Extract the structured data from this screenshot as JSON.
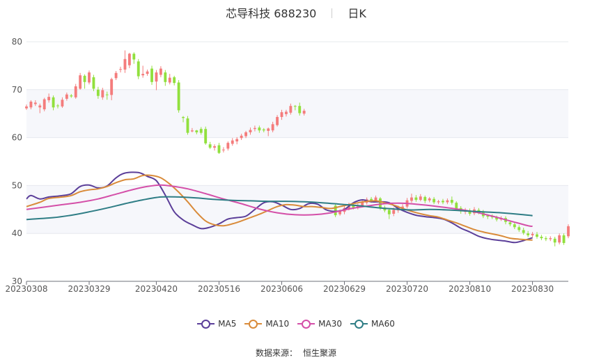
{
  "header": {
    "title": "芯导科技 688230",
    "period": "日K"
  },
  "source": {
    "label": "数据来源：",
    "value": "恒生聚源"
  },
  "colors": {
    "up": "#f47c7c",
    "down": "#91e03d",
    "MA5": "#5b3e99",
    "MA10": "#d98b3a",
    "MA30": "#d44fa8",
    "MA60": "#2e7d85"
  },
  "chart_data": {
    "type": "candlestick",
    "ylim": [
      30,
      80
    ],
    "yticks": [
      30,
      40,
      50,
      60,
      70,
      80
    ],
    "x_tick_labels": [
      "20230308",
      "20230329",
      "20230420",
      "20230516",
      "20230606",
      "20230629",
      "20230720",
      "20230810",
      "20230830"
    ],
    "x_tick_index": [
      0,
      14,
      29,
      43,
      57,
      71,
      85,
      99,
      113
    ],
    "legend": [
      "MA5",
      "MA10",
      "MA30",
      "MA60"
    ],
    "legend_position": "bottom-center",
    "candles": [
      [
        66.1,
        66.5,
        65.8,
        66.9
      ],
      [
        66.3,
        67.5,
        65.9,
        67.8
      ],
      [
        67.0,
        67.3,
        66.6,
        67.8
      ],
      [
        66.3,
        66.7,
        65.1,
        67.1
      ],
      [
        65.9,
        68.0,
        65.5,
        68.3
      ],
      [
        67.8,
        68.5,
        67.3,
        69.2
      ],
      [
        68.4,
        66.3,
        65.7,
        68.8
      ],
      [
        66.7,
        66.6,
        66.1,
        67.0
      ],
      [
        66.5,
        67.9,
        66.2,
        68.4
      ],
      [
        68.1,
        69.0,
        67.7,
        69.4
      ],
      [
        68.8,
        68.6,
        68.3,
        69.1
      ],
      [
        68.4,
        70.7,
        68.1,
        71.2
      ],
      [
        70.2,
        73.0,
        70.0,
        73.5
      ],
      [
        72.9,
        71.6,
        70.2,
        73.2
      ],
      [
        71.5,
        73.6,
        71.1,
        74.0
      ],
      [
        72.6,
        70.2,
        69.7,
        73.1
      ],
      [
        70.0,
        68.7,
        68.1,
        70.6
      ],
      [
        68.4,
        69.9,
        67.9,
        70.4
      ],
      [
        69.0,
        68.9,
        67.9,
        69.6
      ],
      [
        68.9,
        72.2,
        67.8,
        72.5
      ],
      [
        72.4,
        73.5,
        72.0,
        73.9
      ],
      [
        74.3,
        74.3,
        73.6,
        74.8
      ],
      [
        74.2,
        76.4,
        73.5,
        78.2
      ],
      [
        75.1,
        77.5,
        74.5,
        77.7
      ],
      [
        77.5,
        76.3,
        75.4,
        77.8
      ],
      [
        75.9,
        72.8,
        72.2,
        76.4
      ],
      [
        73.0,
        73.3,
        72.5,
        75.0
      ],
      [
        73.3,
        73.8,
        72.9,
        74.2
      ],
      [
        74.4,
        71.6,
        71.0,
        75.0
      ],
      [
        71.7,
        73.6,
        69.9,
        74.1
      ],
      [
        73.1,
        74.4,
        72.6,
        74.9
      ],
      [
        73.6,
        71.6,
        70.8,
        74.1
      ],
      [
        71.5,
        72.5,
        71.1,
        73.3
      ],
      [
        72.6,
        71.4,
        70.9,
        72.9
      ],
      [
        71.5,
        65.7,
        65.2,
        72.0
      ],
      [
        64.3,
        64.1,
        63.2,
        64.5
      ],
      [
        64.0,
        61.0,
        60.6,
        64.5
      ],
      [
        61.3,
        61.5,
        61.1,
        62.0
      ],
      [
        61.5,
        61.1,
        60.7,
        61.6
      ],
      [
        61.8,
        61.0,
        60.6,
        62.2
      ],
      [
        61.8,
        58.8,
        58.5,
        62.3
      ],
      [
        58.6,
        57.9,
        57.6,
        59.1
      ],
      [
        57.9,
        58.2,
        57.3,
        58.6
      ],
      [
        58.4,
        56.8,
        56.6,
        58.9
      ],
      [
        57.5,
        57.5,
        56.9,
        58.0
      ],
      [
        57.7,
        58.9,
        57.3,
        59.2
      ],
      [
        58.7,
        59.4,
        58.3,
        59.9
      ],
      [
        59.2,
        59.7,
        58.6,
        60.1
      ],
      [
        59.9,
        60.4,
        59.5,
        60.8
      ],
      [
        60.3,
        61.1,
        59.9,
        61.4
      ],
      [
        61.1,
        61.6,
        60.6,
        62.1
      ],
      [
        61.8,
        62.0,
        61.3,
        62.5
      ],
      [
        62.1,
        61.5,
        61.0,
        62.5
      ],
      [
        61.7,
        61.5,
        61.1,
        62.0
      ],
      [
        61.4,
        61.9,
        60.3,
        62.1
      ],
      [
        61.5,
        62.8,
        61.1,
        63.3
      ],
      [
        62.6,
        64.3,
        62.3,
        64.7
      ],
      [
        64.3,
        65.3,
        63.7,
        65.8
      ],
      [
        64.9,
        65.4,
        64.4,
        65.8
      ],
      [
        65.2,
        66.6,
        64.8,
        67.1
      ],
      [
        66.6,
        66.5,
        65.7,
        66.8
      ],
      [
        66.6,
        65.1,
        64.6,
        67.3
      ],
      [
        65.0,
        65.6,
        64.6,
        66.0
      ],
      null,
      null,
      null,
      null,
      null,
      null,
      [
        45.8,
        43.8,
        43.4,
        46.2
      ],
      [
        44.0,
        44.6,
        43.7,
        45.0
      ],
      [
        44.5,
        45.3,
        44.0,
        45.7
      ],
      [
        45.2,
        46.0,
        44.8,
        46.4
      ],
      [
        46.0,
        45.4,
        45.0,
        46.3
      ],
      [
        45.5,
        45.8,
        45.0,
        46.2
      ],
      [
        45.8,
        46.5,
        45.4,
        46.9
      ],
      [
        46.4,
        47.1,
        46.0,
        47.5
      ],
      [
        47.2,
        46.8,
        46.4,
        47.6
      ],
      [
        46.9,
        47.5,
        46.5,
        47.9
      ],
      [
        47.3,
        45.3,
        44.9,
        47.6
      ],
      [
        45.4,
        44.8,
        44.4,
        45.8
      ],
      [
        44.9,
        44.0,
        43.0,
        45.3
      ],
      [
        44.1,
        44.9,
        43.6,
        45.4
      ],
      [
        44.8,
        45.3,
        44.3,
        45.8
      ],
      [
        45.3,
        45.6,
        44.8,
        46.1
      ],
      [
        45.6,
        46.9,
        45.2,
        47.4
      ],
      [
        46.8,
        47.5,
        46.4,
        48.3
      ],
      [
        47.5,
        47.0,
        46.6,
        48.0
      ],
      [
        47.0,
        47.7,
        46.7,
        48.2
      ],
      [
        47.6,
        46.8,
        46.3,
        47.9
      ],
      [
        46.9,
        47.3,
        46.5,
        47.6
      ],
      [
        47.2,
        46.5,
        46.1,
        47.6
      ],
      [
        46.5,
        46.7,
        46.1,
        47.0
      ],
      [
        46.8,
        46.5,
        46.1,
        47.2
      ],
      [
        46.5,
        46.9,
        46.1,
        47.3
      ],
      [
        47.0,
        46.4,
        46.0,
        47.7
      ],
      [
        46.4,
        45.2,
        44.9,
        46.7
      ],
      [
        45.3,
        44.6,
        44.1,
        45.7
      ],
      [
        44.5,
        44.9,
        44.0,
        45.3
      ],
      [
        44.8,
        44.1,
        43.7,
        45.2
      ],
      [
        44.2,
        45.0,
        43.8,
        45.5
      ],
      [
        44.9,
        44.5,
        44.0,
        45.3
      ],
      [
        44.5,
        43.6,
        43.2,
        44.9
      ],
      [
        43.7,
        43.5,
        43.0,
        44.0
      ],
      [
        43.5,
        43.4,
        43.0,
        44.0
      ],
      [
        43.3,
        42.9,
        42.5,
        43.7
      ],
      [
        42.9,
        43.2,
        42.6,
        43.6
      ],
      [
        43.2,
        42.4,
        41.9,
        43.6
      ],
      [
        42.3,
        41.9,
        41.5,
        42.7
      ],
      [
        41.9,
        41.3,
        40.9,
        42.3
      ],
      [
        41.3,
        40.7,
        40.3,
        41.7
      ],
      [
        40.7,
        40.1,
        39.7,
        41.2
      ],
      [
        40.0,
        39.6,
        39.2,
        40.5
      ],
      [
        39.6,
        39.9,
        39.2,
        40.3
      ],
      [
        39.8,
        39.3,
        38.9,
        40.3
      ],
      [
        39.3,
        39.0,
        38.6,
        39.7
      ],
      [
        39.0,
        38.8,
        38.4,
        39.4
      ],
      [
        38.8,
        39.0,
        38.4,
        39.4
      ],
      [
        38.9,
        38.1,
        37.3,
        39.3
      ],
      [
        38.1,
        39.6,
        37.7,
        40.0
      ],
      [
        39.6,
        38.0,
        37.6,
        40.0
      ],
      [
        39.4,
        41.5,
        39.0,
        41.9
      ]
    ],
    "series": [
      {
        "name": "MA5",
        "points": [
          [
            0,
            47.2
          ],
          [
            1,
            47.9
          ],
          [
            3,
            47.2
          ],
          [
            5,
            47.6
          ],
          [
            8,
            47.9
          ],
          [
            10,
            48.3
          ],
          [
            12,
            49.8
          ],
          [
            14,
            50.1
          ],
          [
            16,
            49.5
          ],
          [
            18,
            49.9
          ],
          [
            20,
            51.6
          ],
          [
            22,
            52.6
          ],
          [
            25,
            52.7
          ],
          [
            27,
            51.9
          ],
          [
            29,
            51.0
          ],
          [
            31,
            48.0
          ],
          [
            33,
            44.5
          ],
          [
            35,
            42.8
          ],
          [
            37,
            41.8
          ],
          [
            39,
            41.0
          ],
          [
            41,
            41.3
          ],
          [
            43,
            42.0
          ],
          [
            45,
            43.0
          ],
          [
            47,
            43.3
          ],
          [
            49,
            43.6
          ],
          [
            51,
            45.0
          ],
          [
            53,
            46.4
          ],
          [
            55,
            46.6
          ],
          [
            57,
            45.9
          ],
          [
            59,
            45.0
          ],
          [
            61,
            45.2
          ],
          [
            63,
            46.2
          ],
          [
            65,
            46.1
          ],
          [
            67,
            44.9
          ],
          [
            69,
            44.6
          ],
          [
            71,
            45.0
          ],
          [
            73,
            46.4
          ],
          [
            75,
            47.0
          ],
          [
            77,
            46.6
          ],
          [
            79,
            46.6
          ],
          [
            81,
            46.4
          ],
          [
            83,
            45.2
          ],
          [
            85,
            44.4
          ],
          [
            87,
            43.8
          ],
          [
            89,
            43.5
          ],
          [
            91,
            43.3
          ],
          [
            93,
            43.0
          ],
          [
            95,
            42.2
          ],
          [
            97,
            41.1
          ],
          [
            99,
            40.3
          ],
          [
            101,
            39.4
          ],
          [
            103,
            38.9
          ],
          [
            105,
            38.6
          ],
          [
            107,
            38.4
          ],
          [
            109,
            38.1
          ],
          [
            111,
            38.5
          ],
          [
            113,
            39.1
          ]
        ]
      },
      {
        "name": "MA10",
        "points": [
          [
            0,
            45.6
          ],
          [
            3,
            46.5
          ],
          [
            5,
            47.3
          ],
          [
            8,
            47.6
          ],
          [
            10,
            47.9
          ],
          [
            12,
            48.7
          ],
          [
            14,
            49.1
          ],
          [
            16,
            49.3
          ],
          [
            18,
            49.8
          ],
          [
            20,
            50.6
          ],
          [
            22,
            51.2
          ],
          [
            24,
            51.4
          ],
          [
            26,
            52.1
          ],
          [
            28,
            52.1
          ],
          [
            30,
            51.6
          ],
          [
            32,
            50.3
          ],
          [
            34,
            48.6
          ],
          [
            36,
            46.6
          ],
          [
            38,
            44.4
          ],
          [
            40,
            42.6
          ],
          [
            42,
            41.8
          ],
          [
            44,
            41.6
          ],
          [
            46,
            42.0
          ],
          [
            48,
            42.6
          ],
          [
            50,
            43.3
          ],
          [
            52,
            44.0
          ],
          [
            54,
            44.8
          ],
          [
            56,
            45.6
          ],
          [
            58,
            46.0
          ],
          [
            60,
            45.9
          ],
          [
            62,
            45.6
          ],
          [
            64,
            45.6
          ],
          [
            66,
            45.4
          ],
          [
            68,
            45.2
          ],
          [
            70,
            45.6
          ],
          [
            72,
            46.0
          ],
          [
            74,
            46.4
          ],
          [
            76,
            46.7
          ],
          [
            78,
            46.8
          ],
          [
            80,
            46.4
          ],
          [
            82,
            45.9
          ],
          [
            84,
            45.2
          ],
          [
            86,
            44.6
          ],
          [
            88,
            44.1
          ],
          [
            90,
            43.7
          ],
          [
            92,
            43.4
          ],
          [
            94,
            42.8
          ],
          [
            96,
            42.2
          ],
          [
            98,
            41.5
          ],
          [
            100,
            40.8
          ],
          [
            102,
            40.3
          ],
          [
            104,
            39.9
          ],
          [
            106,
            39.5
          ],
          [
            108,
            39.0
          ],
          [
            110,
            38.8
          ],
          [
            113,
            38.6
          ]
        ]
      },
      {
        "name": "MA30",
        "points": [
          [
            0,
            45.0
          ],
          [
            4,
            45.5
          ],
          [
            8,
            46.0
          ],
          [
            12,
            46.5
          ],
          [
            16,
            47.2
          ],
          [
            20,
            48.2
          ],
          [
            24,
            49.2
          ],
          [
            27,
            49.8
          ],
          [
            30,
            50.1
          ],
          [
            33,
            49.8
          ],
          [
            36,
            49.3
          ],
          [
            40,
            48.3
          ],
          [
            44,
            47.2
          ],
          [
            48,
            46.2
          ],
          [
            52,
            45.1
          ],
          [
            56,
            44.3
          ],
          [
            60,
            43.9
          ],
          [
            64,
            43.9
          ],
          [
            68,
            44.3
          ],
          [
            72,
            45.1
          ],
          [
            76,
            45.7
          ],
          [
            80,
            46.2
          ],
          [
            84,
            46.3
          ],
          [
            88,
            46.0
          ],
          [
            92,
            45.6
          ],
          [
            96,
            45.1
          ],
          [
            100,
            44.5
          ],
          [
            104,
            43.6
          ],
          [
            108,
            42.6
          ],
          [
            112,
            41.6
          ],
          [
            113,
            41.5
          ]
        ]
      },
      {
        "name": "MA60",
        "points": [
          [
            0,
            42.9
          ],
          [
            6,
            43.3
          ],
          [
            10,
            43.8
          ],
          [
            14,
            44.5
          ],
          [
            18,
            45.3
          ],
          [
            22,
            46.2
          ],
          [
            26,
            47.0
          ],
          [
            30,
            47.6
          ],
          [
            34,
            47.6
          ],
          [
            38,
            47.4
          ],
          [
            42,
            47.1
          ],
          [
            46,
            46.9
          ],
          [
            50,
            46.8
          ],
          [
            54,
            46.7
          ],
          [
            58,
            46.7
          ],
          [
            62,
            46.6
          ],
          [
            66,
            46.4
          ],
          [
            70,
            46.1
          ],
          [
            74,
            45.8
          ],
          [
            78,
            45.4
          ],
          [
            82,
            45.1
          ],
          [
            86,
            44.9
          ],
          [
            90,
            45.0
          ],
          [
            94,
            44.9
          ],
          [
            98,
            44.7
          ],
          [
            102,
            44.5
          ],
          [
            106,
            44.3
          ],
          [
            110,
            44.0
          ],
          [
            113,
            43.7
          ]
        ]
      }
    ]
  }
}
